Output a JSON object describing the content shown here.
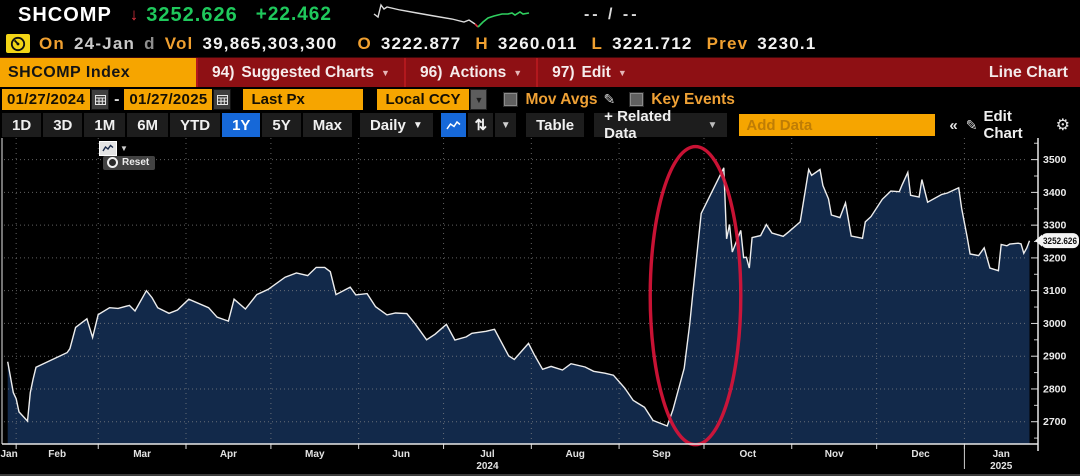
{
  "header": {
    "symbol": "SHCOMP",
    "last_price": "3252.626",
    "change": "+22.462",
    "range_display": "-- / --",
    "session": {
      "on_label": "On",
      "date": "24-Jan",
      "freq": "d",
      "vol_label": "Vol",
      "volume": "39,865,303,300",
      "open_label": "O",
      "open": "3222.877",
      "high_label": "H",
      "high": "3260.011",
      "low_label": "L",
      "low": "3221.712",
      "prev_label": "Prev",
      "prev": "3230.1"
    }
  },
  "menubar": {
    "security": "SHCOMP Index",
    "items": [
      {
        "num": "94)",
        "label": "Suggested Charts"
      },
      {
        "num": "96)",
        "label": "Actions"
      },
      {
        "num": "97)",
        "label": "Edit"
      }
    ],
    "right_label": "Line Chart"
  },
  "controls": {
    "date_from": "01/27/2024",
    "date_to": "01/27/2025",
    "price_field": "Last Px",
    "currency": "Local CCY",
    "mov_avgs_label": "Mov Avgs",
    "key_events_label": "Key Events"
  },
  "toolbar": {
    "periods": [
      "1D",
      "3D",
      "1M",
      "6M",
      "YTD",
      "1Y",
      "5Y",
      "Max"
    ],
    "selected_period": "1Y",
    "frequency": "Daily",
    "table_label": "Table",
    "related_data_label": "+ Related Data",
    "add_data_placeholder": "Add Data",
    "edit_chart_label": "Edit Chart"
  },
  "chart_overlay": {
    "reset_label": "Reset"
  },
  "colors": {
    "up_green": "#1fc95c",
    "down_red": "#e03440",
    "amber": "#f6a500",
    "menubar_red": "#8e1014",
    "selected_blue": "#1668d8",
    "chart_fill": "#12294a",
    "chart_line": "#ededed",
    "annotation_red": "#d91438"
  },
  "chart_data": {
    "type": "line",
    "title": "SHCOMP Index 1Y Daily Line Chart",
    "x_range": [
      "2024-01-27",
      "2025-01-27"
    ],
    "ylim": [
      2632,
      3566
    ],
    "yticks": [
      2700,
      2800,
      2900,
      3000,
      3100,
      3200,
      3300,
      3400,
      3500
    ],
    "x_tick_labels": [
      "Jan",
      "Feb",
      "Mar",
      "Apr",
      "May",
      "Jun",
      "Jul",
      "Aug",
      "Sep",
      "Oct",
      "Nov",
      "Dec",
      "Jan"
    ],
    "year_labels": [
      {
        "text": "2024",
        "label_index": 6
      },
      {
        "text": "2025",
        "label_index": 12
      }
    ],
    "last_price_label": "3252.626",
    "line_color": "#ededed",
    "fill_color": "#12294a",
    "annotation_color": "#d91438",
    "annotation_ellipse": {
      "center_date": "2024-09-28",
      "center_value": 3085,
      "radius_days": 16,
      "radius_points": 455
    },
    "points": [
      [
        "2024-01-29",
        2883
      ],
      [
        "2024-01-31",
        2789
      ],
      [
        "2024-02-01",
        2770
      ],
      [
        "2024-02-02",
        2730
      ],
      [
        "2024-02-05",
        2702
      ],
      [
        "2024-02-06",
        2789
      ],
      [
        "2024-02-07",
        2830
      ],
      [
        "2024-02-08",
        2866
      ],
      [
        "2024-02-19",
        2911
      ],
      [
        "2024-02-20",
        2923
      ],
      [
        "2024-02-22",
        2988
      ],
      [
        "2024-02-26",
        3014
      ],
      [
        "2024-02-28",
        2957
      ],
      [
        "2024-03-01",
        3027
      ],
      [
        "2024-03-05",
        3048
      ],
      [
        "2024-03-08",
        3046
      ],
      [
        "2024-03-12",
        3055
      ],
      [
        "2024-03-14",
        3038
      ],
      [
        "2024-03-18",
        3100
      ],
      [
        "2024-03-20",
        3079
      ],
      [
        "2024-03-22",
        3048
      ],
      [
        "2024-03-26",
        3031
      ],
      [
        "2024-03-29",
        3041
      ],
      [
        "2024-04-02",
        3074
      ],
      [
        "2024-04-09",
        3048
      ],
      [
        "2024-04-12",
        3019
      ],
      [
        "2024-04-16",
        3007
      ],
      [
        "2024-04-18",
        3074
      ],
      [
        "2024-04-22",
        3044
      ],
      [
        "2024-04-26",
        3088
      ],
      [
        "2024-04-30",
        3104
      ],
      [
        "2024-05-06",
        3141
      ],
      [
        "2024-05-10",
        3154
      ],
      [
        "2024-05-14",
        3146
      ],
      [
        "2024-05-17",
        3171
      ],
      [
        "2024-05-20",
        3171
      ],
      [
        "2024-05-22",
        3158
      ],
      [
        "2024-05-24",
        3088
      ],
      [
        "2024-05-29",
        3111
      ],
      [
        "2024-05-31",
        3087
      ],
      [
        "2024-06-04",
        3091
      ],
      [
        "2024-06-07",
        3051
      ],
      [
        "2024-06-11",
        3026
      ],
      [
        "2024-06-14",
        3032
      ],
      [
        "2024-06-18",
        3030
      ],
      [
        "2024-06-21",
        2998
      ],
      [
        "2024-06-25",
        2950
      ],
      [
        "2024-06-28",
        2967
      ],
      [
        "2024-07-02",
        2997
      ],
      [
        "2024-07-05",
        2949
      ],
      [
        "2024-07-09",
        2959
      ],
      [
        "2024-07-11",
        2970
      ],
      [
        "2024-07-16",
        2976
      ],
      [
        "2024-07-19",
        2982
      ],
      [
        "2024-07-24",
        2901
      ],
      [
        "2024-07-26",
        2890
      ],
      [
        "2024-07-31",
        2939
      ],
      [
        "2024-08-02",
        2905
      ],
      [
        "2024-08-05",
        2860
      ],
      [
        "2024-08-08",
        2869
      ],
      [
        "2024-08-12",
        2858
      ],
      [
        "2024-08-15",
        2877
      ],
      [
        "2024-08-20",
        2867
      ],
      [
        "2024-08-23",
        2854
      ],
      [
        "2024-08-27",
        2848
      ],
      [
        "2024-08-30",
        2842
      ],
      [
        "2024-09-03",
        2803
      ],
      [
        "2024-09-06",
        2765
      ],
      [
        "2024-09-10",
        2744
      ],
      [
        "2024-09-13",
        2704
      ],
      [
        "2024-09-18",
        2687
      ],
      [
        "2024-09-20",
        2736
      ],
      [
        "2024-09-24",
        2863
      ],
      [
        "2024-09-26",
        3000
      ],
      [
        "2024-09-27",
        3088
      ],
      [
        "2024-09-30",
        3336
      ],
      [
        "2024-10-08",
        3475
      ],
      [
        "2024-10-09",
        3258
      ],
      [
        "2024-10-10",
        3302
      ],
      [
        "2024-10-11",
        3218
      ],
      [
        "2024-10-14",
        3284
      ],
      [
        "2024-10-15",
        3201
      ],
      [
        "2024-10-16",
        3202
      ],
      [
        "2024-10-17",
        3169
      ],
      [
        "2024-10-18",
        3262
      ],
      [
        "2024-10-21",
        3268
      ],
      [
        "2024-10-23",
        3302
      ],
      [
        "2024-10-25",
        3276
      ],
      [
        "2024-10-29",
        3266
      ],
      [
        "2024-10-31",
        3280
      ],
      [
        "2024-11-04",
        3310
      ],
      [
        "2024-11-07",
        3470
      ],
      [
        "2024-11-08",
        3452
      ],
      [
        "2024-11-11",
        3470
      ],
      [
        "2024-11-12",
        3421
      ],
      [
        "2024-11-14",
        3380
      ],
      [
        "2024-11-15",
        3331
      ],
      [
        "2024-11-18",
        3323
      ],
      [
        "2024-11-20",
        3368
      ],
      [
        "2024-11-22",
        3267
      ],
      [
        "2024-11-26",
        3260
      ],
      [
        "2024-11-27",
        3310
      ],
      [
        "2024-11-29",
        3326
      ],
      [
        "2024-12-03",
        3379
      ],
      [
        "2024-12-06",
        3404
      ],
      [
        "2024-12-09",
        3402
      ],
      [
        "2024-12-10",
        3423
      ],
      [
        "2024-12-12",
        3461
      ],
      [
        "2024-12-13",
        3391
      ],
      [
        "2024-12-16",
        3386
      ],
      [
        "2024-12-17",
        3439
      ],
      [
        "2024-12-19",
        3370
      ],
      [
        "2024-12-24",
        3394
      ],
      [
        "2024-12-26",
        3398
      ],
      [
        "2024-12-30",
        3414
      ],
      [
        "2024-12-31",
        3352
      ],
      [
        "2025-01-02",
        3263
      ],
      [
        "2025-01-03",
        3212
      ],
      [
        "2025-01-06",
        3207
      ],
      [
        "2025-01-08",
        3231
      ],
      [
        "2025-01-10",
        3169
      ],
      [
        "2025-01-13",
        3161
      ],
      [
        "2025-01-14",
        3241
      ],
      [
        "2025-01-16",
        3237
      ],
      [
        "2025-01-17",
        3242
      ],
      [
        "2025-01-20",
        3245
      ],
      [
        "2025-01-21",
        3243
      ],
      [
        "2025-01-22",
        3214
      ],
      [
        "2025-01-23",
        3230
      ],
      [
        "2025-01-24",
        3252.626
      ]
    ]
  }
}
